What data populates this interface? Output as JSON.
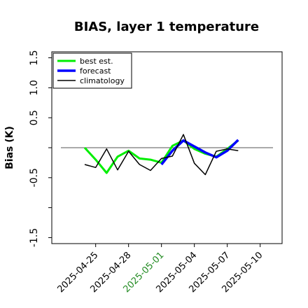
{
  "chart_data": {
    "type": "line",
    "title": "BIAS, layer 1 temperature",
    "xlabel": "",
    "ylabel": "Bias (K)",
    "x_range": [
      "2025-04-21",
      "2025-05-12"
    ],
    "ylim": [
      -1.6,
      1.6
    ],
    "y_ticks": [
      -1.5,
      -0.5,
      0.5,
      1.0,
      1.5
    ],
    "y_tick_labels": [
      "-1.5",
      "-0.5",
      "0.5",
      "1.0",
      "1.5"
    ],
    "x_ticks": [
      "2025-04-25",
      "2025-04-28",
      "2025-05-01",
      "2025-05-04",
      "2025-05-07",
      "2025-05-10"
    ],
    "highlight_tick": "2025-05-01",
    "highlight_color": "#228b22",
    "zero_line": true,
    "grid": false,
    "legend_position": "top-left",
    "series": [
      {
        "name": "best est.",
        "color": "#00ee00",
        "x": [
          "2025-04-24",
          "2025-04-25",
          "2025-04-26",
          "2025-04-27",
          "2025-04-28",
          "2025-04-29",
          "2025-04-30",
          "2025-05-01",
          "2025-05-02",
          "2025-05-03",
          "2025-05-04",
          "2025-05-05",
          "2025-05-06",
          "2025-05-07",
          "2025-05-08"
        ],
        "values": [
          0.0,
          -0.2,
          -0.42,
          -0.15,
          -0.05,
          -0.18,
          -0.2,
          -0.25,
          0.03,
          0.12,
          -0.02,
          -0.1,
          -0.15,
          -0.02,
          0.12
        ]
      },
      {
        "name": "forecast",
        "color": "#0000ff",
        "x": [
          "2025-05-01",
          "2025-05-02",
          "2025-05-03",
          "2025-05-04",
          "2025-05-05",
          "2025-05-06",
          "2025-05-07",
          "2025-05-08"
        ],
        "values": [
          -0.28,
          -0.05,
          0.12,
          0.02,
          -0.08,
          -0.16,
          -0.05,
          0.13
        ]
      },
      {
        "name": "climatology",
        "color": "#000000",
        "x": [
          "2025-04-24",
          "2025-04-25",
          "2025-04-26",
          "2025-04-27",
          "2025-04-28",
          "2025-04-29",
          "2025-04-30",
          "2025-05-01",
          "2025-05-02",
          "2025-05-03",
          "2025-05-04",
          "2025-05-05",
          "2025-05-06",
          "2025-05-07",
          "2025-05-08"
        ],
        "values": [
          -0.28,
          -0.33,
          -0.02,
          -0.37,
          -0.06,
          -0.28,
          -0.38,
          -0.18,
          -0.14,
          0.22,
          -0.26,
          -0.45,
          -0.06,
          -0.02,
          -0.05
        ]
      }
    ]
  }
}
